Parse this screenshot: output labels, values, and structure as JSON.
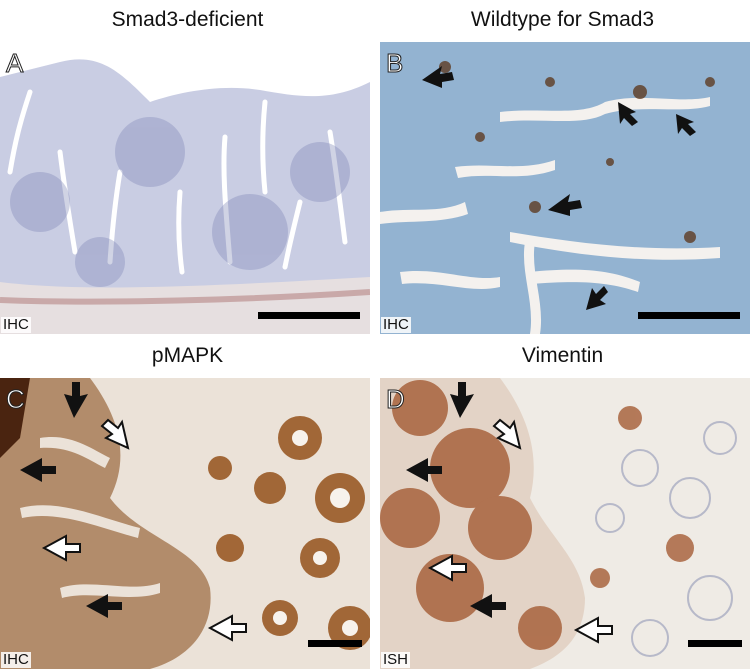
{
  "panels": [
    {
      "letter": "A",
      "title": "Smad3-deficient",
      "method": "IHC"
    },
    {
      "letter": "B",
      "title": "Wildtype for Smad3",
      "method": "IHC"
    },
    {
      "letter": "C",
      "title": "pMAPK",
      "method": "IHC"
    },
    {
      "letter": "D",
      "title": "Vimentin",
      "method": "ISH"
    }
  ],
  "colors": {
    "hematoxylin": "#9aa4c8",
    "background_tissue_b": "#8fb0d0",
    "dab_brown": "#8a4a1e",
    "stroma": "#e8e0d8"
  }
}
